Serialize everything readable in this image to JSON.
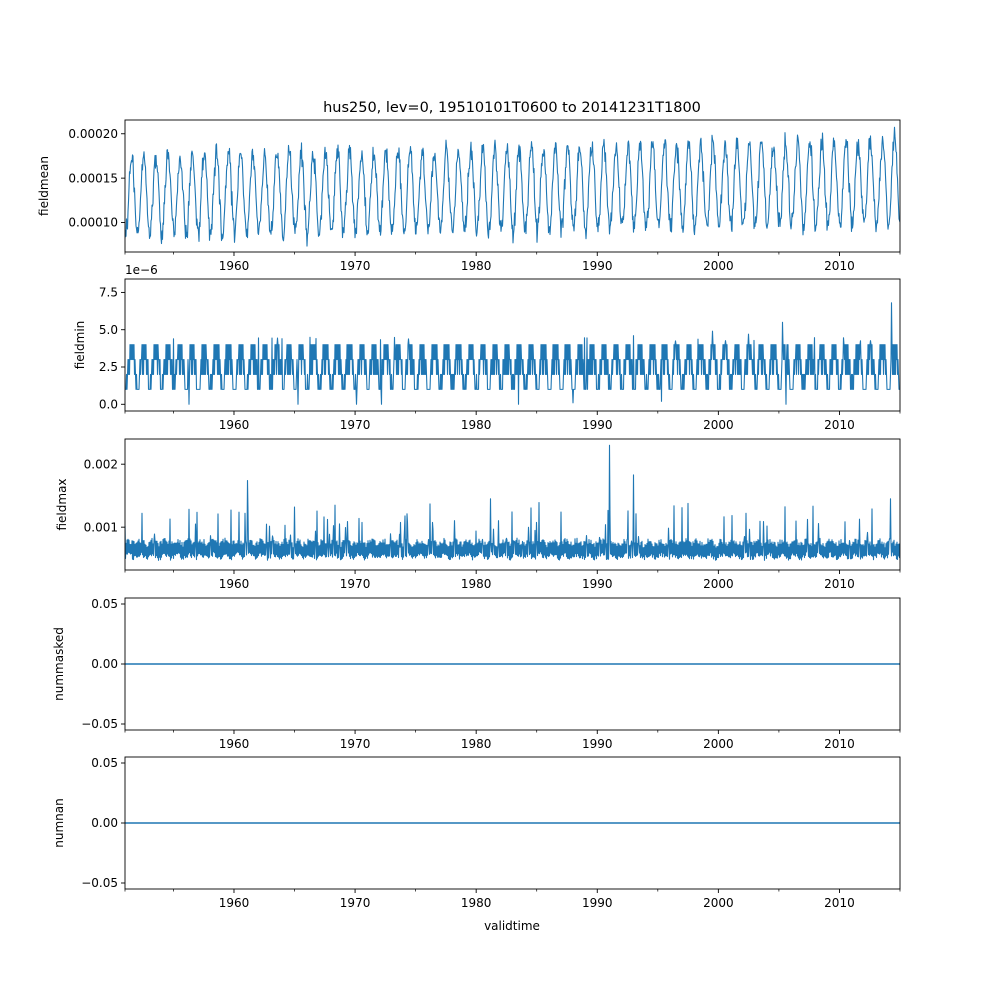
{
  "chart_data": {
    "type": "line",
    "title": "hus250, lev=0, 19510101T0600 to 20141231T1800",
    "xlabel": "validtime",
    "xlim": [
      1951.0,
      2015.0
    ],
    "x_ticks": [
      "1960",
      "1970",
      "1980",
      "1990",
      "2000",
      "2010"
    ],
    "x_tick_values": [
      1960,
      1970,
      1980,
      1990,
      2000,
      2010
    ],
    "x_minor_tick_values": [
      1955,
      1965,
      1975,
      1985,
      1995,
      2005,
      2015
    ],
    "line_color": "#1f77b4",
    "panels": [
      {
        "ylabel": "fieldmean",
        "ylim": [
          6.68e-05,
          0.0002155
        ],
        "y_ticks": [
          "0.00010",
          "0.00015",
          "0.00020"
        ],
        "y_tick_values": [
          0.0001,
          0.00015,
          0.0002
        ],
        "offset_text": "",
        "series": {
          "summer_peak_start": 0.000175,
          "summer_peak_end": 0.000192,
          "winter_trough_start": 8.5e-05,
          "winter_trough_end": 9.8e-05,
          "noise": 1.8e-05,
          "max": 0.000209,
          "min": 7.35e-05
        }
      },
      {
        "ylabel": "fieldmin",
        "ylim": [
          -0.45,
          8.4
        ],
        "y_ticks": [
          "0.0",
          "2.5",
          "5.0",
          "7.5"
        ],
        "y_tick_values": [
          0,
          2.5,
          5.0,
          7.5
        ],
        "offset_text": "1e−6",
        "series": {
          "levels": [
            1.0,
            2.0,
            3.0,
            4.0
          ],
          "spikes": [
            [
              1993.0,
              4.6
            ],
            [
              1999.5,
              4.9
            ],
            [
              2002.5,
              4.7
            ],
            [
              2005.3,
              5.5
            ],
            [
              2014.3,
              6.8
            ]
          ],
          "dips": [
            [
              1956.3,
              0.0
            ],
            [
              1965.3,
              0.0
            ],
            [
              1970.1,
              0.0
            ],
            [
              1972.2,
              0.0
            ],
            [
              1983.5,
              0.0
            ],
            [
              1988.0,
              0.1
            ],
            [
              1995.3,
              0.2
            ],
            [
              2005.6,
              0.0
            ]
          ]
        }
      },
      {
        "ylabel": "fieldmax",
        "ylim": [
          0.00032,
          0.0024
        ],
        "y_ticks": [
          "0.001",
          "0.002"
        ],
        "y_tick_values": [
          0.001,
          0.002
        ],
        "offset_text": "",
        "series": {
          "base": 0.00058,
          "band": 0.00022,
          "min": 0.00038,
          "spikes": [
            [
              1961.1,
              0.00174
            ],
            [
              1960.9,
              0.00122
            ],
            [
              1991.0,
              0.0023
            ],
            [
              1993.0,
              0.00183
            ],
            [
              1981.2,
              0.00145
            ],
            [
              1985.2,
              0.00139
            ],
            [
              1976.2,
              0.00137
            ],
            [
              2014.2,
              0.00145
            ],
            [
              1965.0,
              0.00132
            ],
            [
              1987.0,
              0.00124
            ],
            [
              1997.0,
              0.00131
            ]
          ]
        }
      },
      {
        "ylabel": "nummasked",
        "ylim": [
          -0.055,
          0.055
        ],
        "y_ticks": [
          "−0.05",
          "0.00",
          "0.05"
        ],
        "y_tick_values": [
          -0.05,
          0.0,
          0.05
        ],
        "offset_text": "",
        "series": {
          "constant": 0.0
        }
      },
      {
        "ylabel": "numnan",
        "ylim": [
          -0.055,
          0.055
        ],
        "y_ticks": [
          "−0.05",
          "0.00",
          "0.05"
        ],
        "y_tick_values": [
          -0.05,
          0.0,
          0.05
        ],
        "offset_text": "",
        "series": {
          "constant": 0.0
        }
      }
    ]
  }
}
